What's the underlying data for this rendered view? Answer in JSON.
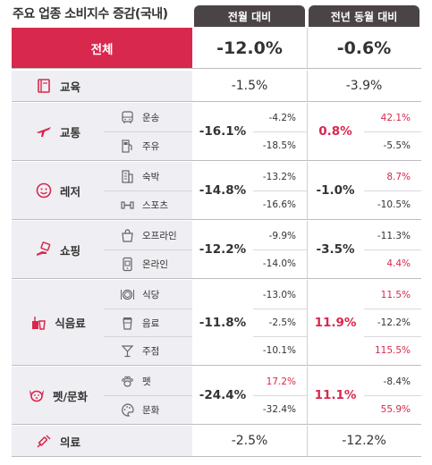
{
  "title": "주요 업종 소비지수 증감(국내)",
  "headers": {
    "mom": "전월 대비",
    "yoy": "전년 동월 대비"
  },
  "total": {
    "label": "전체",
    "mom": "-12.0%",
    "yoy": "-0.6%"
  },
  "colors": {
    "accent": "#d8284d",
    "header": "#4a4446",
    "label_bg": "#efeff3"
  },
  "categories": [
    {
      "name": "교육",
      "icon": "book-icon",
      "mom": "-1.5%",
      "yoy": "-3.9%",
      "subs": []
    },
    {
      "name": "교통",
      "icon": "airplane-icon",
      "mom": "-16.1%",
      "yoy": "0.8%",
      "subs": [
        {
          "name": "운송",
          "icon": "bus-icon",
          "mom": "-4.2%",
          "yoy": "42.1%"
        },
        {
          "name": "주유",
          "icon": "gas-pump-icon",
          "mom": "-18.5%",
          "yoy": "-5.5%"
        }
      ]
    },
    {
      "name": "레저",
      "icon": "smile-icon",
      "mom": "-14.8%",
      "yoy": "-1.0%",
      "subs": [
        {
          "name": "숙박",
          "icon": "building-icon",
          "mom": "-13.2%",
          "yoy": "8.7%"
        },
        {
          "name": "스포츠",
          "icon": "dumbbell-icon",
          "mom": "-16.6%",
          "yoy": "-10.5%"
        }
      ]
    },
    {
      "name": "쇼핑",
      "icon": "shopping-hand-icon",
      "mom": "-12.2%",
      "yoy": "-3.5%",
      "subs": [
        {
          "name": "오프라인",
          "icon": "shopping-bag-icon",
          "mom": "-9.9%",
          "yoy": "-11.3%"
        },
        {
          "name": "온라인",
          "icon": "mobile-shopping-icon",
          "mom": "-14.0%",
          "yoy": "4.4%"
        }
      ]
    },
    {
      "name": "식음료",
      "icon": "food-drink-icon",
      "mom": "-11.8%",
      "yoy": "11.9%",
      "subs": [
        {
          "name": "식당",
          "icon": "plate-icon",
          "mom": "-13.0%",
          "yoy": "11.5%"
        },
        {
          "name": "음료",
          "icon": "coffee-cup-icon",
          "mom": "-2.5%",
          "yoy": "-12.2%"
        },
        {
          "name": "주점",
          "icon": "cocktail-icon",
          "mom": "-10.1%",
          "yoy": "115.5%"
        }
      ]
    },
    {
      "name": "펫/문화",
      "icon": "dog-icon",
      "mom": "-24.4%",
      "yoy": "11.1%",
      "subs": [
        {
          "name": "펫",
          "icon": "paw-icon",
          "mom": "17.2%",
          "yoy": "-8.4%"
        },
        {
          "name": "문화",
          "icon": "palette-icon",
          "mom": "-32.4%",
          "yoy": "55.9%"
        }
      ]
    },
    {
      "name": "의료",
      "icon": "syringe-icon",
      "mom": "-2.5%",
      "yoy": "-12.2%",
      "subs": []
    }
  ]
}
